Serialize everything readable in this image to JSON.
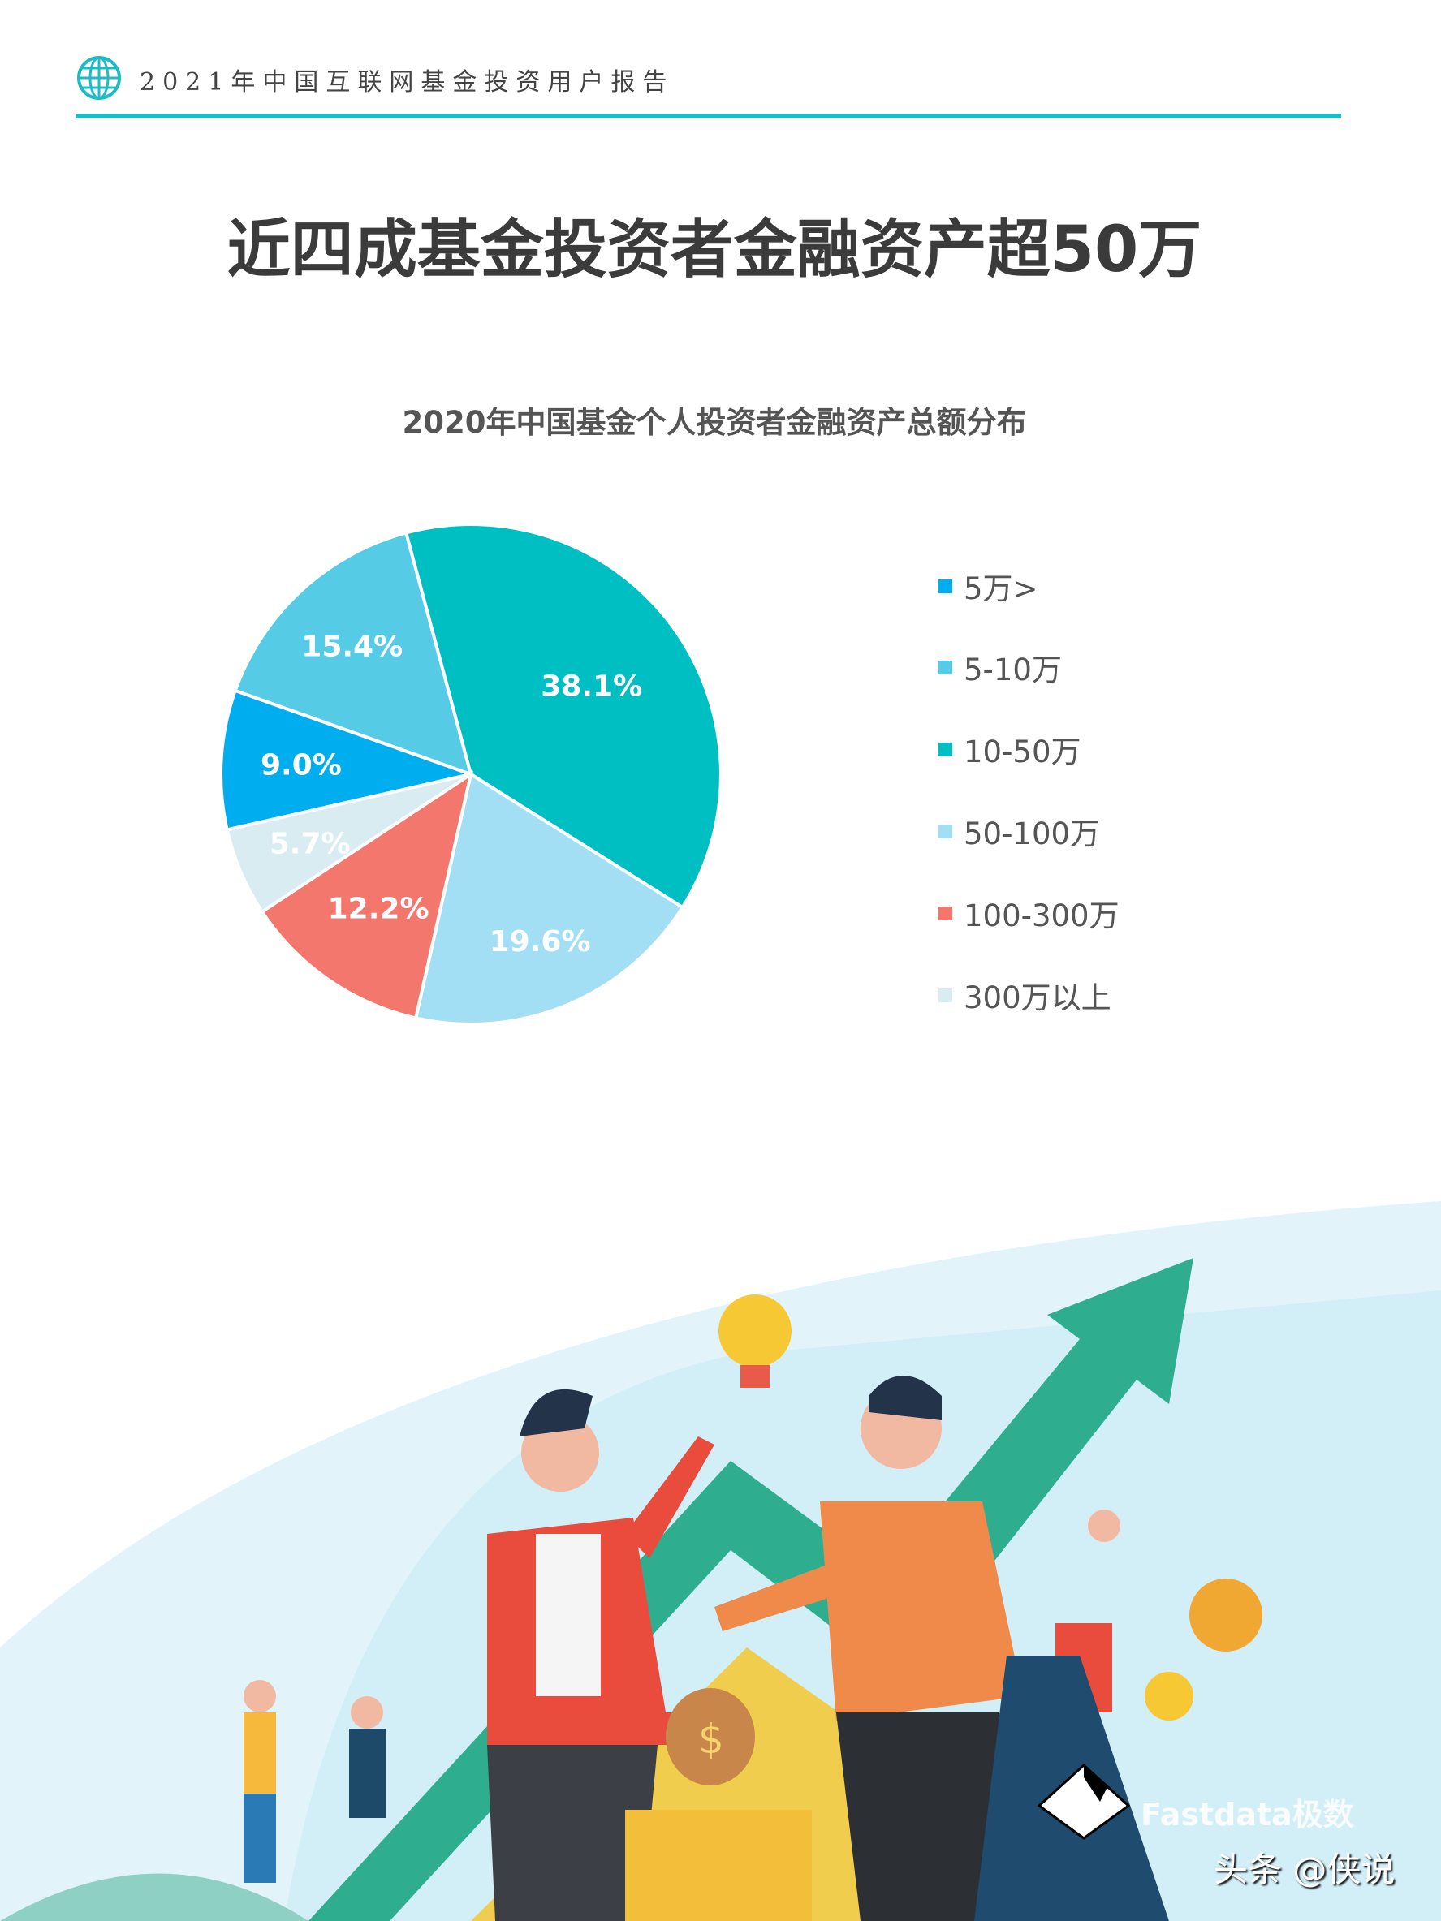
{
  "header": {
    "report_title": "2021年中国互联网基金投资用户报告",
    "icon": "globe-icon"
  },
  "page_title": "近四成基金投资者金融资产超50万",
  "chart_data": {
    "type": "pie",
    "title": "2020年中国基金个人投资者金融资产总额分布",
    "categories": [
      "5万>",
      "5-10万",
      "10-50万",
      "50-100万",
      "100-300万",
      "300万以上"
    ],
    "values": [
      9.0,
      15.4,
      38.1,
      19.6,
      12.2,
      5.7
    ],
    "data_labels": [
      "9.0%",
      "15.4%",
      "38.1%",
      "19.6%",
      "12.2%",
      "5.7%"
    ],
    "colors": [
      "#00aeef",
      "#56cbe6",
      "#00bfc2",
      "#a2dff5",
      "#f4776e",
      "#d9ecf2"
    ],
    "unit": "%",
    "legend_position": "right"
  },
  "watermark": {
    "brand": "Fastdata极数",
    "credit": "头条 @侠说"
  }
}
